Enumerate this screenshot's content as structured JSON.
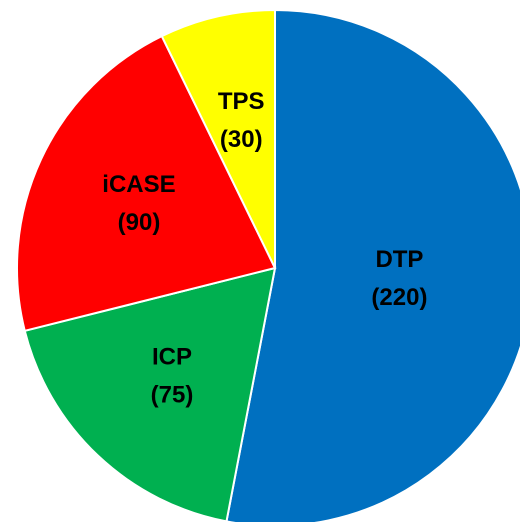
{
  "chart_data": {
    "type": "pie",
    "categories": [
      "DTP",
      "ICP",
      "iCASE",
      "TPS"
    ],
    "values": [
      220,
      75,
      90,
      30
    ],
    "value_labels": [
      "(220)",
      "(75)",
      "(90)",
      "(30)"
    ],
    "colors": [
      "#0070c0",
      "#00b050",
      "#ff0000",
      "#ffff00"
    ]
  }
}
